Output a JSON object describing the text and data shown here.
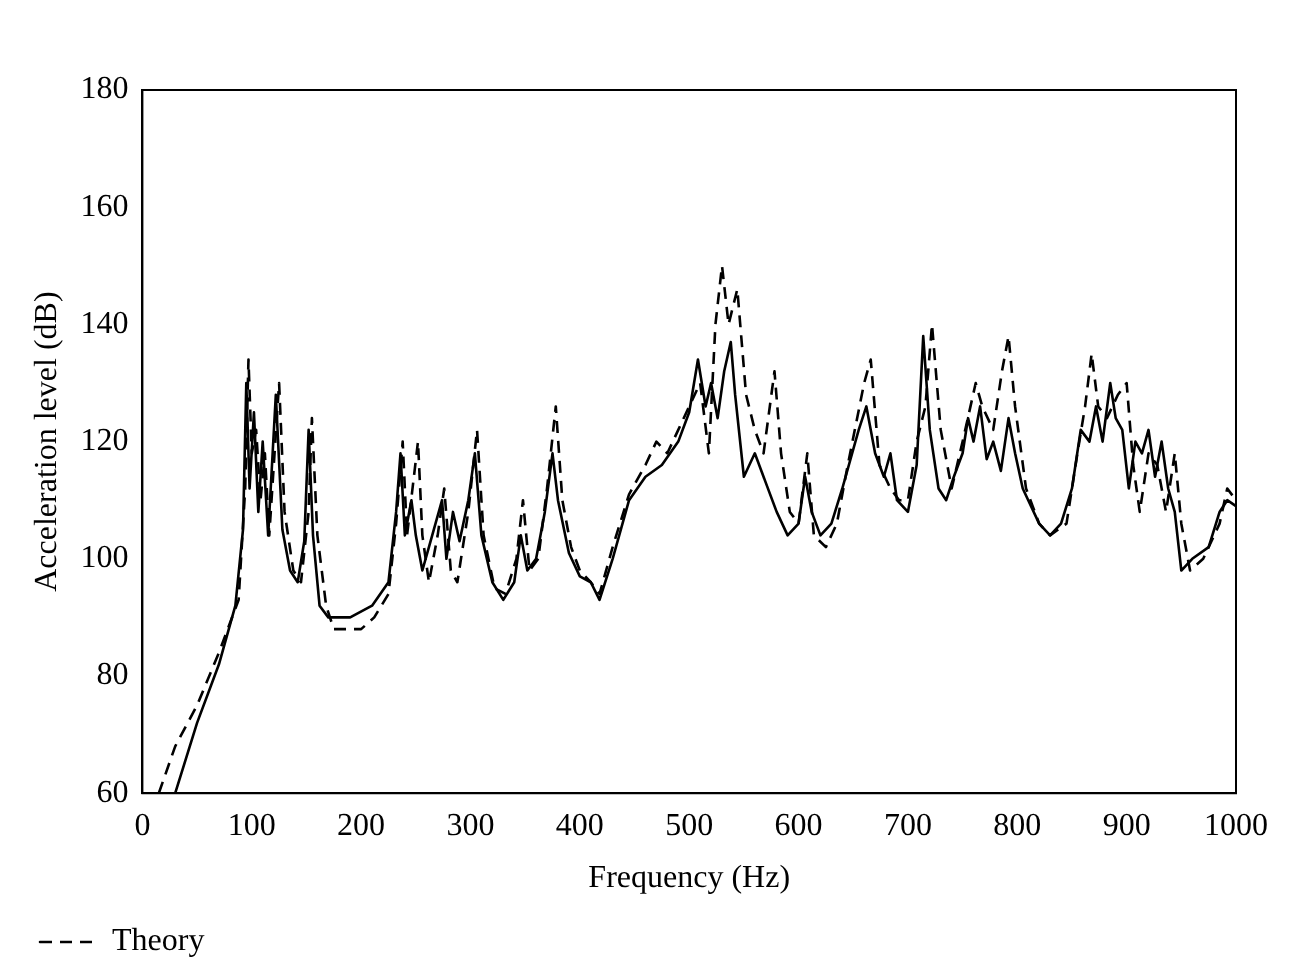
{
  "chart_data": {
    "type": "line",
    "xlabel": "Frequency (Hz)",
    "ylabel": "Acceleration level (dB)",
    "xlim": [
      0,
      1000
    ],
    "xticks": [
      0,
      100,
      200,
      300,
      400,
      500,
      600,
      700,
      800,
      900,
      1000
    ],
    "ylim": [
      60,
      180
    ],
    "yticks": [
      60,
      80,
      100,
      120,
      140,
      160,
      180
    ],
    "grid": false,
    "legend": "bottom left",
    "marker": "none",
    "series": [
      {
        "name": "Theory",
        "color": "#000000",
        "line_style": "dashed",
        "x": [
          15,
          30,
          50,
          70,
          88,
          94,
          97,
          100,
          104,
          108,
          112,
          116,
          125,
          130,
          138,
          145,
          152,
          155,
          160,
          168,
          175,
          200,
          212,
          225,
          232,
          238,
          242,
          252,
          256,
          262,
          270,
          276,
          282,
          288,
          298,
          306,
          312,
          322,
          332,
          342,
          348,
          354,
          362,
          370,
          378,
          384,
          392,
          400,
          410,
          418,
          430,
          445,
          460,
          470,
          480,
          490,
          500,
          510,
          518,
          524,
          530,
          536,
          544,
          552,
          560,
          568,
          578,
          584,
          592,
          600,
          608,
          614,
          625,
          635,
          645,
          660,
          666,
          674,
          684,
          692,
          700,
          708,
          716,
          722,
          730,
          740,
          750,
          762,
          768,
          778,
          786,
          792,
          798,
          808,
          820,
          830,
          845,
          855,
          862,
          868,
          874,
          882,
          892,
          900,
          906,
          912,
          920,
          928,
          936,
          944,
          950,
          958,
          970,
          985,
          992,
          1000
        ],
        "values": [
          60,
          68,
          75,
          84,
          93,
          112,
          134,
          118,
          122,
          110,
          118,
          104,
          130,
          108,
          98,
          96,
          108,
          124,
          104,
          92,
          88,
          88,
          90,
          94,
          106,
          120,
          104,
          120,
          104,
          96,
          104,
          112,
          98,
          96,
          108,
          122,
          104,
          95,
          94,
          100,
          110,
          98,
          100,
          112,
          126,
          110,
          102,
          98,
          96,
          94,
          102,
          111,
          116,
          120,
          118,
          122,
          126,
          130,
          118,
          140,
          150,
          140,
          146,
          128,
          122,
          118,
          132,
          118,
          108,
          106,
          118,
          104,
          102,
          106,
          116,
          130,
          134,
          116,
          112,
          110,
          110,
          120,
          126,
          140,
          122,
          112,
          120,
          130,
          126,
          122,
          132,
          138,
          126,
          112,
          106,
          104,
          106,
          118,
          126,
          135,
          126,
          124,
          128,
          130,
          116,
          108,
          118,
          116,
          108,
          118,
          106,
          98,
          100,
          106,
          112,
          110
        ]
      },
      {
        "color": "#000000",
        "line_style": "solid",
        "x": [
          30,
          50,
          70,
          85,
          92,
          95,
          98,
          102,
          106,
          110,
          115,
          122,
          128,
          135,
          142,
          148,
          152,
          156,
          162,
          170,
          190,
          210,
          225,
          232,
          236,
          240,
          246,
          250,
          256,
          262,
          268,
          274,
          278,
          284,
          290,
          298,
          304,
          310,
          320,
          330,
          340,
          346,
          352,
          360,
          368,
          375,
          380,
          390,
          400,
          410,
          418,
          430,
          445,
          460,
          475,
          490,
          500,
          508,
          515,
          520,
          526,
          532,
          538,
          542,
          550,
          560,
          570,
          580,
          590,
          600,
          606,
          612,
          620,
          630,
          640,
          655,
          662,
          670,
          678,
          684,
          690,
          700,
          708,
          714,
          720,
          728,
          735,
          742,
          750,
          755,
          760,
          766,
          772,
          778,
          785,
          792,
          798,
          805,
          820,
          830,
          840,
          850,
          858,
          866,
          872,
          878,
          885,
          890,
          896,
          902,
          908,
          914,
          920,
          926,
          932,
          938,
          944,
          950,
          960,
          975,
          985,
          992,
          1000
        ],
        "values": [
          60,
          72,
          82,
          92,
          105,
          130,
          112,
          125,
          108,
          120,
          104,
          128,
          105,
          98,
          96,
          103,
          122,
          104,
          92,
          90,
          90,
          92,
          96,
          108,
          118,
          104,
          110,
          104,
          98,
          102,
          106,
          110,
          100,
          108,
          103,
          110,
          118,
          104,
          96,
          93,
          96,
          104,
          98,
          100,
          108,
          118,
          110,
          101,
          97,
          96,
          93,
          100,
          110,
          114,
          116,
          120,
          125,
          134,
          126,
          130,
          124,
          132,
          137,
          128,
          114,
          118,
          113,
          108,
          104,
          106,
          114,
          108,
          104,
          106,
          112,
          122,
          126,
          118,
          114,
          118,
          110,
          108,
          116,
          138,
          122,
          112,
          110,
          114,
          118,
          124,
          120,
          126,
          117,
          120,
          115,
          124,
          118,
          112,
          106,
          104,
          106,
          112,
          122,
          120,
          126,
          120,
          130,
          124,
          122,
          112,
          120,
          118,
          122,
          114,
          120,
          112,
          108,
          98,
          100,
          102,
          108,
          110,
          109
        ]
      }
    ]
  }
}
